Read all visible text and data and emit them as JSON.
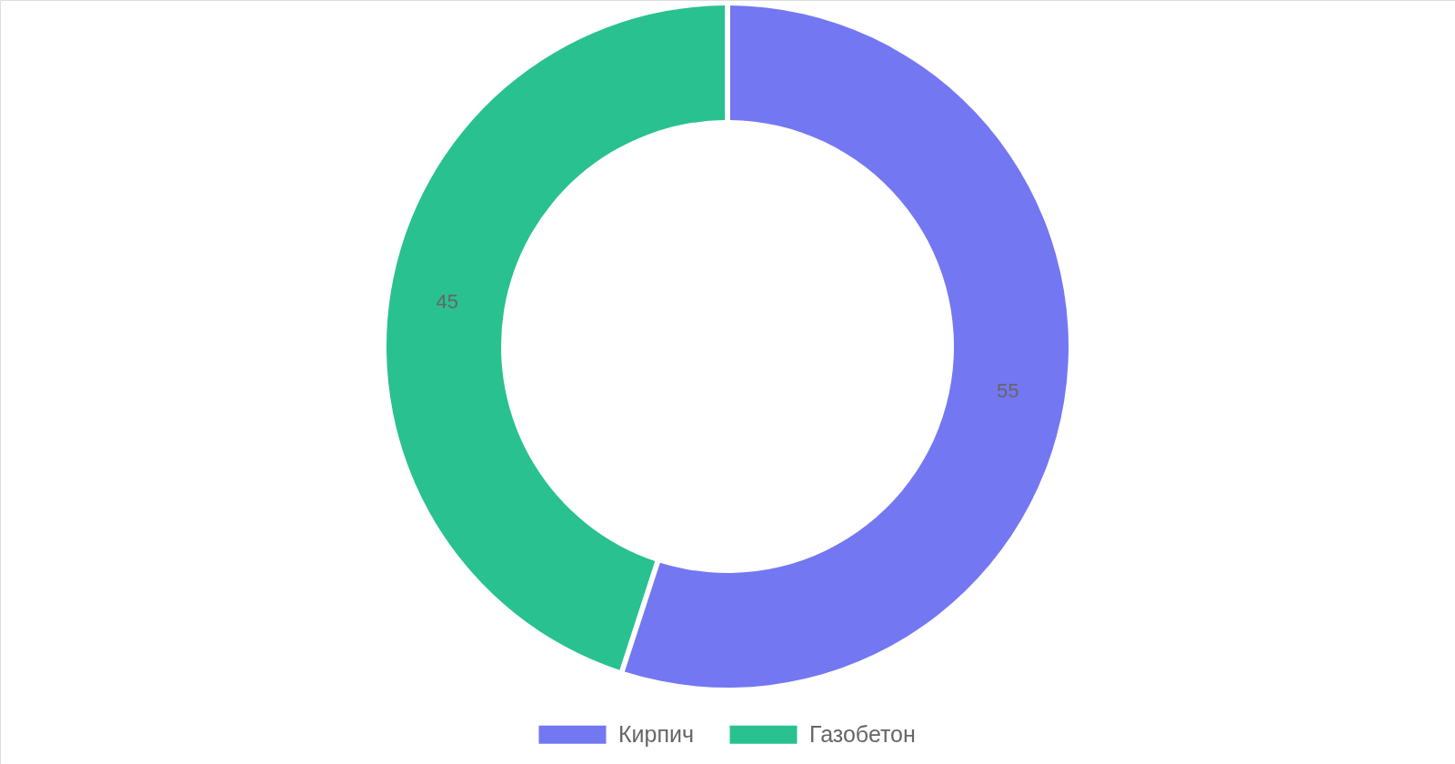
{
  "chart_data": {
    "type": "donut",
    "categories": [
      "Кирпич",
      "Газобетон"
    ],
    "values": [
      55,
      45
    ],
    "colors": [
      "#7477f2",
      "#29c18f"
    ],
    "data_labels": true,
    "legend": "bottom"
  }
}
